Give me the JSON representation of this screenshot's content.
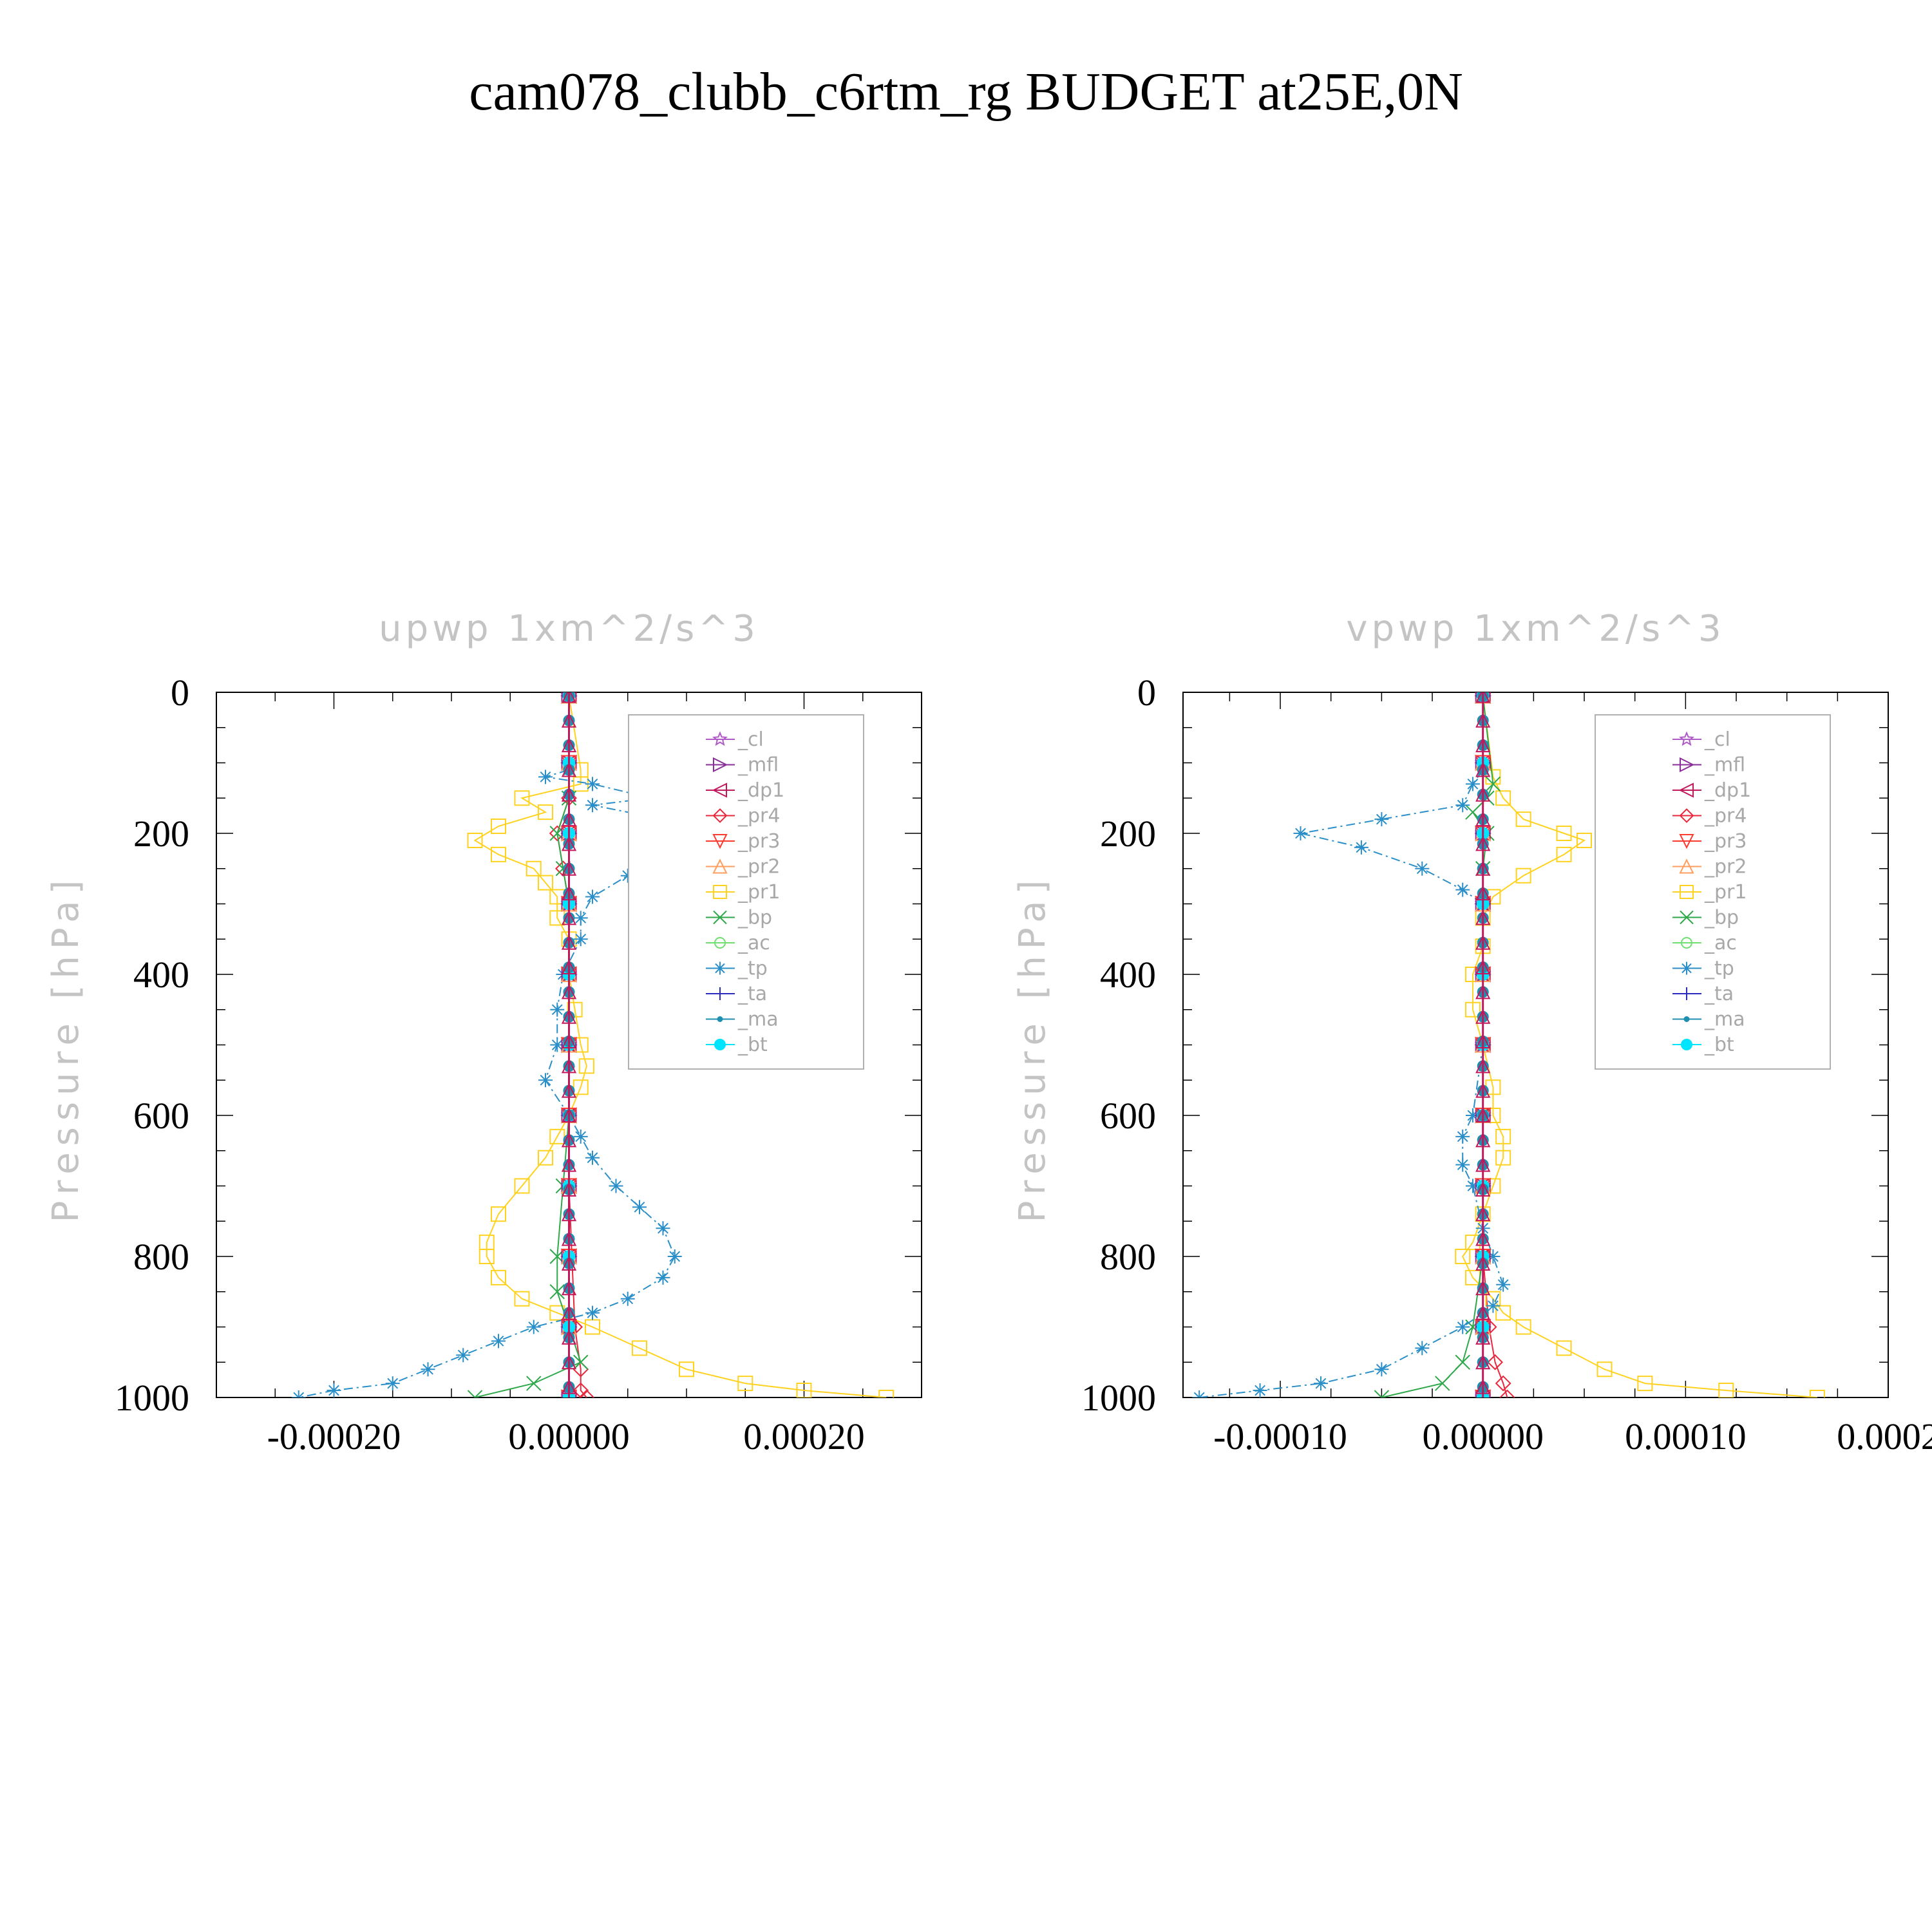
{
  "title": "cam078_clubb_c6rtm_rg  BUDGET at25E,0N",
  "chart_data": [
    {
      "type": "line",
      "title": "upwp   1xm^2/s^3",
      "ylabel": "Pressure [hPa]",
      "xlim": [
        -0.0003,
        0.0003
      ],
      "ylim": [
        0,
        1000
      ],
      "y_inverted": true,
      "x_ticks": [
        "-0.00020",
        "0.00000",
        "0.00020"
      ],
      "x_tick_values": [
        -0.0002,
        0.0,
        0.0002
      ],
      "y_ticks": [
        "0",
        "200",
        "400",
        "600",
        "800",
        "1000"
      ],
      "y_tick_values": [
        0,
        200,
        400,
        600,
        800,
        1000
      ],
      "legend_position": "top-right",
      "series": [
        {
          "name": "_cl",
          "color": "#b05ac8",
          "marker": "star",
          "y": [
            5,
            100,
            200,
            300,
            400,
            500,
            600,
            700,
            800,
            900,
            1000
          ],
          "x": [
            0,
            0,
            0,
            0,
            0,
            0,
            0,
            0,
            0,
            0,
            0
          ]
        },
        {
          "name": "_mfl",
          "color": "#8a2f9a",
          "marker": "tri-right",
          "y": [
            5,
            100,
            200,
            300,
            400,
            500,
            600,
            700,
            800,
            900,
            1000
          ],
          "x": [
            0,
            0,
            0,
            0,
            0,
            0,
            0,
            0,
            0,
            0,
            0
          ]
        },
        {
          "name": "_dp1",
          "color": "#c2185b",
          "marker": "tri-left",
          "y": [
            5,
            100,
            200,
            300,
            400,
            500,
            600,
            700,
            800,
            900,
            1000
          ],
          "x": [
            0,
            0,
            0,
            0,
            0,
            0,
            0,
            0,
            0,
            0,
            0
          ]
        },
        {
          "name": "_pr4",
          "color": "#e8283c",
          "marker": "diamond",
          "y": [
            5,
            150,
            200,
            250,
            300,
            500,
            700,
            900,
            960,
            990,
            1000
          ],
          "x": [
            0,
            0,
            -1e-05,
            -5e-06,
            0,
            0,
            0,
            5e-06,
            1e-05,
            1e-05,
            1.5e-05
          ]
        },
        {
          "name": "_pr3",
          "color": "#ff3b30",
          "marker": "tri-down",
          "y": [
            5,
            100,
            200,
            300,
            400,
            500,
            600,
            700,
            800,
            900,
            1000
          ],
          "x": [
            0,
            0,
            0,
            0,
            0,
            0,
            0,
            0,
            0,
            0,
            0
          ]
        },
        {
          "name": "_pr2",
          "color": "#ff9e5e",
          "marker": "tri-up",
          "y": [
            5,
            100,
            200,
            300,
            400,
            500,
            600,
            700,
            800,
            900,
            1000
          ],
          "x": [
            0,
            0,
            0,
            0,
            0,
            0,
            0,
            0,
            0,
            0,
            0
          ]
        },
        {
          "name": "_pr1",
          "color": "#ffd21f",
          "marker": "square",
          "y": [
            5,
            110,
            130,
            150,
            170,
            190,
            210,
            230,
            250,
            270,
            290,
            320,
            350,
            400,
            450,
            500,
            530,
            560,
            600,
            630,
            660,
            700,
            740,
            780,
            800,
            830,
            860,
            880,
            900,
            930,
            960,
            980,
            990,
            1000
          ],
          "x": [
            0,
            1e-05,
            1e-05,
            -4e-05,
            -2e-05,
            -6e-05,
            -8e-05,
            -6e-05,
            -3e-05,
            -2e-05,
            -1e-05,
            -1e-05,
            0,
            0,
            5e-06,
            1e-05,
            1.5e-05,
            1e-05,
            0,
            -1e-05,
            -2e-05,
            -4e-05,
            -6e-05,
            -7e-05,
            -7e-05,
            -6e-05,
            -4e-05,
            -1e-05,
            2e-05,
            6e-05,
            0.0001,
            0.00015,
            0.0002,
            0.00027
          ]
        },
        {
          "name": "_bp",
          "color": "#2ea84a",
          "marker": "x",
          "y": [
            5,
            150,
            200,
            250,
            300,
            400,
            500,
            600,
            700,
            800,
            850,
            900,
            950,
            980,
            1000
          ],
          "x": [
            0,
            0,
            -1e-05,
            -5e-06,
            0,
            0,
            0,
            0,
            -5e-06,
            -1e-05,
            -1e-05,
            0,
            1e-05,
            -3e-05,
            -8e-05
          ]
        },
        {
          "name": "_ac",
          "color": "#6fe06f",
          "marker": "circle",
          "y": [
            5,
            100,
            200,
            300,
            400,
            500,
            600,
            700,
            800,
            900,
            1000
          ],
          "x": [
            0,
            0,
            0,
            0,
            0,
            0,
            0,
            0,
            0,
            0,
            0
          ]
        },
        {
          "name": "_tp",
          "color": "#2a8fc8",
          "marker": "asterisk",
          "y": [
            5,
            110,
            120,
            130,
            150,
            160,
            180,
            200,
            230,
            260,
            290,
            320,
            350,
            400,
            450,
            500,
            550,
            600,
            630,
            660,
            700,
            730,
            760,
            800,
            830,
            860,
            880,
            900,
            920,
            940,
            960,
            980,
            990,
            1000
          ],
          "x": [
            0,
            0,
            -2e-05,
            2e-05,
            7e-05,
            2e-05,
            8e-05,
            0.00011,
            9e-05,
            5e-05,
            2e-05,
            1e-05,
            1e-05,
            -5e-06,
            -1e-05,
            -1e-05,
            -2e-05,
            0,
            1e-05,
            2e-05,
            4e-05,
            6e-05,
            8e-05,
            9e-05,
            8e-05,
            5e-05,
            2e-05,
            -3e-05,
            -6e-05,
            -9e-05,
            -0.00012,
            -0.00015,
            -0.0002,
            -0.00023
          ]
        },
        {
          "name": "_ta",
          "color": "#2b2bbf",
          "marker": "plus",
          "y": [
            5,
            100,
            200,
            300,
            400,
            500,
            600,
            700,
            800,
            900,
            1000
          ],
          "x": [
            0,
            0,
            0,
            0,
            0,
            0,
            0,
            0,
            0,
            0,
            0
          ]
        },
        {
          "name": "_ma",
          "color": "#1f8fb0",
          "marker": "dot",
          "y": [
            5,
            100,
            200,
            300,
            400,
            500,
            600,
            700,
            800,
            900,
            1000
          ],
          "x": [
            0,
            0,
            0,
            0,
            0,
            0,
            0,
            0,
            0,
            0,
            0
          ]
        },
        {
          "name": "_bt",
          "color": "#00e5ff",
          "marker": "filled-circle",
          "y": [
            5,
            100,
            200,
            300,
            400,
            500,
            600,
            700,
            800,
            900,
            1000
          ],
          "x": [
            0,
            0,
            0,
            0,
            0,
            0,
            0,
            0,
            0,
            0,
            0
          ]
        }
      ]
    },
    {
      "type": "line",
      "title": "vpwp   1xm^2/s^3",
      "ylabel": "Pressure [hPa]",
      "xlim": [
        -0.000148,
        0.0002
      ],
      "ylim": [
        0,
        1000
      ],
      "y_inverted": true,
      "x_ticks": [
        "-0.00010",
        "0.00000",
        "0.00010",
        "0.0002"
      ],
      "x_tick_values": [
        -0.0001,
        0.0,
        0.0001,
        0.0002
      ],
      "y_ticks": [
        "0",
        "200",
        "400",
        "600",
        "800",
        "1000"
      ],
      "y_tick_values": [
        0,
        200,
        400,
        600,
        800,
        1000
      ],
      "legend_position": "top-right",
      "series": [
        {
          "name": "_cl",
          "color": "#b05ac8",
          "marker": "star",
          "y": [
            5,
            100,
            200,
            300,
            400,
            500,
            600,
            700,
            800,
            900,
            1000
          ],
          "x": [
            0,
            0,
            0,
            0,
            0,
            0,
            0,
            0,
            0,
            0,
            0
          ]
        },
        {
          "name": "_mfl",
          "color": "#8a2f9a",
          "marker": "tri-right",
          "y": [
            5,
            100,
            200,
            300,
            400,
            500,
            600,
            700,
            800,
            900,
            1000
          ],
          "x": [
            0,
            0,
            0,
            0,
            0,
            0,
            0,
            0,
            0,
            0,
            0
          ]
        },
        {
          "name": "_dp1",
          "color": "#c2185b",
          "marker": "tri-left",
          "y": [
            5,
            100,
            200,
            300,
            400,
            500,
            600,
            700,
            800,
            900,
            1000
          ],
          "x": [
            0,
            0,
            0,
            0,
            0,
            0,
            0,
            0,
            0,
            0,
            0
          ]
        },
        {
          "name": "_pr4",
          "color": "#e8283c",
          "marker": "diamond",
          "y": [
            5,
            200,
            400,
            600,
            800,
            900,
            950,
            980,
            1000
          ],
          "x": [
            0,
            0,
            0,
            0,
            0,
            3e-06,
            6e-06,
            1e-05,
            1.2e-05
          ]
        },
        {
          "name": "_pr3",
          "color": "#ff3b30",
          "marker": "tri-down",
          "y": [
            5,
            100,
            200,
            300,
            400,
            500,
            600,
            700,
            800,
            900,
            1000
          ],
          "x": [
            0,
            0,
            0,
            0,
            0,
            0,
            0,
            0,
            0,
            0,
            0
          ]
        },
        {
          "name": "_pr2",
          "color": "#ff9e5e",
          "marker": "tri-up",
          "y": [
            5,
            100,
            200,
            300,
            400,
            500,
            600,
            700,
            800,
            900,
            1000
          ],
          "x": [
            0,
            0,
            0,
            0,
            0,
            0,
            0,
            0,
            0,
            0,
            0
          ]
        },
        {
          "name": "_pr1",
          "color": "#ffd21f",
          "marker": "square",
          "y": [
            5,
            120,
            150,
            180,
            200,
            210,
            230,
            260,
            290,
            320,
            360,
            400,
            450,
            500,
            560,
            600,
            630,
            660,
            700,
            740,
            780,
            800,
            830,
            860,
            880,
            900,
            930,
            960,
            980,
            990,
            1000
          ],
          "x": [
            0,
            5e-06,
            1e-05,
            2e-05,
            4e-05,
            5e-05,
            4e-05,
            2e-05,
            5e-06,
            0,
            0,
            -5e-06,
            -5e-06,
            0,
            5e-06,
            5e-06,
            1e-05,
            1e-05,
            5e-06,
            0,
            -5e-06,
            -1e-05,
            -5e-06,
            5e-06,
            1e-05,
            2e-05,
            4e-05,
            6e-05,
            8e-05,
            0.00012,
            0.000165
          ]
        },
        {
          "name": "_bp",
          "color": "#2ea84a",
          "marker": "x",
          "y": [
            5,
            130,
            150,
            170,
            200,
            250,
            300,
            400,
            600,
            800,
            900,
            950,
            980,
            1000
          ],
          "x": [
            0,
            5e-06,
            2e-06,
            -5e-06,
            2e-06,
            0,
            0,
            0,
            0,
            0,
            -5e-06,
            -1e-05,
            -2e-05,
            -5e-05
          ]
        },
        {
          "name": "_ac",
          "color": "#6fe06f",
          "marker": "circle",
          "y": [
            5,
            100,
            200,
            300,
            400,
            500,
            600,
            700,
            800,
            900,
            1000
          ],
          "x": [
            0,
            0,
            0,
            0,
            0,
            0,
            0,
            0,
            0,
            0,
            0
          ]
        },
        {
          "name": "_tp",
          "color": "#2a8fc8",
          "marker": "asterisk",
          "y": [
            5,
            110,
            130,
            160,
            180,
            200,
            220,
            250,
            280,
            300,
            400,
            500,
            600,
            630,
            670,
            700,
            760,
            800,
            840,
            870,
            900,
            930,
            960,
            980,
            990,
            1000
          ],
          "x": [
            0,
            0,
            -5e-06,
            -1e-05,
            -5e-05,
            -9e-05,
            -6e-05,
            -3e-05,
            -1e-05,
            0,
            0,
            0,
            -5e-06,
            -1e-05,
            -1e-05,
            -5e-06,
            0,
            5e-06,
            1e-05,
            5e-06,
            -1e-05,
            -3e-05,
            -5e-05,
            -8e-05,
            -0.00011,
            -0.00014
          ]
        },
        {
          "name": "_ta",
          "color": "#2b2bbf",
          "marker": "plus",
          "y": [
            5,
            100,
            200,
            300,
            400,
            500,
            600,
            700,
            800,
            900,
            1000
          ],
          "x": [
            0,
            0,
            0,
            0,
            0,
            0,
            0,
            0,
            0,
            0,
            0
          ]
        },
        {
          "name": "_ma",
          "color": "#1f8fb0",
          "marker": "dot",
          "y": [
            5,
            100,
            200,
            300,
            400,
            500,
            600,
            700,
            800,
            900,
            1000
          ],
          "x": [
            0,
            0,
            0,
            0,
            0,
            0,
            0,
            0,
            0,
            0,
            0
          ]
        },
        {
          "name": "_bt",
          "color": "#00e5ff",
          "marker": "filled-circle",
          "y": [
            5,
            100,
            200,
            300,
            400,
            500,
            600,
            700,
            800,
            900,
            1000
          ],
          "x": [
            0,
            0,
            0,
            0,
            0,
            0,
            0,
            0,
            0,
            0,
            0
          ]
        }
      ]
    }
  ]
}
